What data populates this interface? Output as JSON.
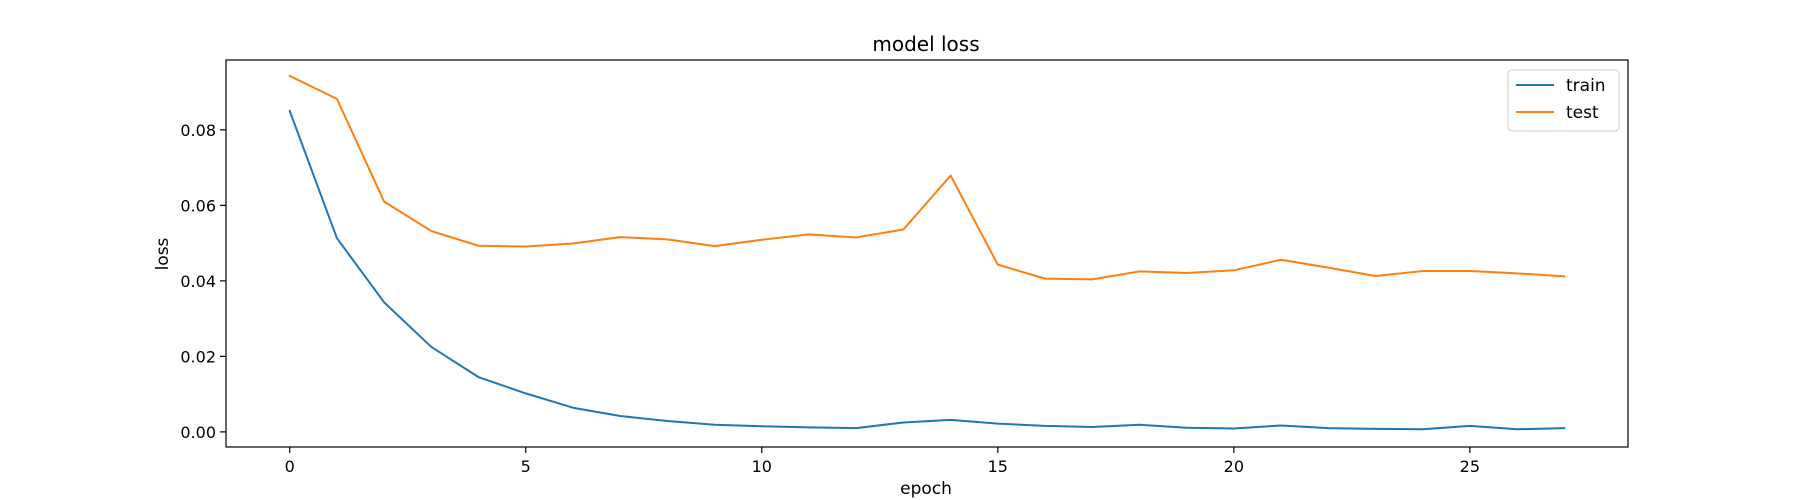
{
  "chart_data": {
    "type": "line",
    "title": "model loss",
    "xlabel": "epoch",
    "ylabel": "loss",
    "xlim": [
      -1.35,
      28.35
    ],
    "ylim": [
      -0.004,
      0.0985
    ],
    "x": [
      0,
      1,
      2,
      3,
      4,
      5,
      6,
      7,
      8,
      9,
      10,
      11,
      12,
      13,
      14,
      15,
      16,
      17,
      18,
      19,
      20,
      21,
      22,
      23,
      24,
      25,
      26,
      27
    ],
    "xticks": [
      0,
      5,
      10,
      15,
      20,
      25
    ],
    "xtick_labels": [
      "0",
      "5",
      "10",
      "15",
      "20",
      "25"
    ],
    "yticks": [
      0.0,
      0.02,
      0.04,
      0.06,
      0.08
    ],
    "ytick_labels": [
      "0.00",
      "0.02",
      "0.04",
      "0.06",
      "0.08"
    ],
    "grid": false,
    "legend_position": "top-right",
    "series": [
      {
        "name": "train",
        "color": "#1f77b4",
        "values": [
          0.085,
          0.0513,
          0.0343,
          0.0225,
          0.0145,
          0.0102,
          0.0064,
          0.0042,
          0.0029,
          0.0019,
          0.0015,
          0.0012,
          0.001,
          0.0025,
          0.0032,
          0.0022,
          0.0016,
          0.0013,
          0.0019,
          0.0011,
          0.0009,
          0.0017,
          0.001,
          0.0008,
          0.0007,
          0.0016,
          0.0007,
          0.001
        ]
      },
      {
        "name": "test",
        "color": "#ff7f0e",
        "values": [
          0.0943,
          0.0882,
          0.061,
          0.0532,
          0.0493,
          0.0491,
          0.0499,
          0.0516,
          0.051,
          0.0492,
          0.0509,
          0.0523,
          0.0515,
          0.0536,
          0.0679,
          0.0443,
          0.0406,
          0.0404,
          0.0425,
          0.0421,
          0.0428,
          0.0456,
          0.0435,
          0.0413,
          0.0426,
          0.0426,
          0.042,
          0.0412
        ]
      }
    ]
  }
}
